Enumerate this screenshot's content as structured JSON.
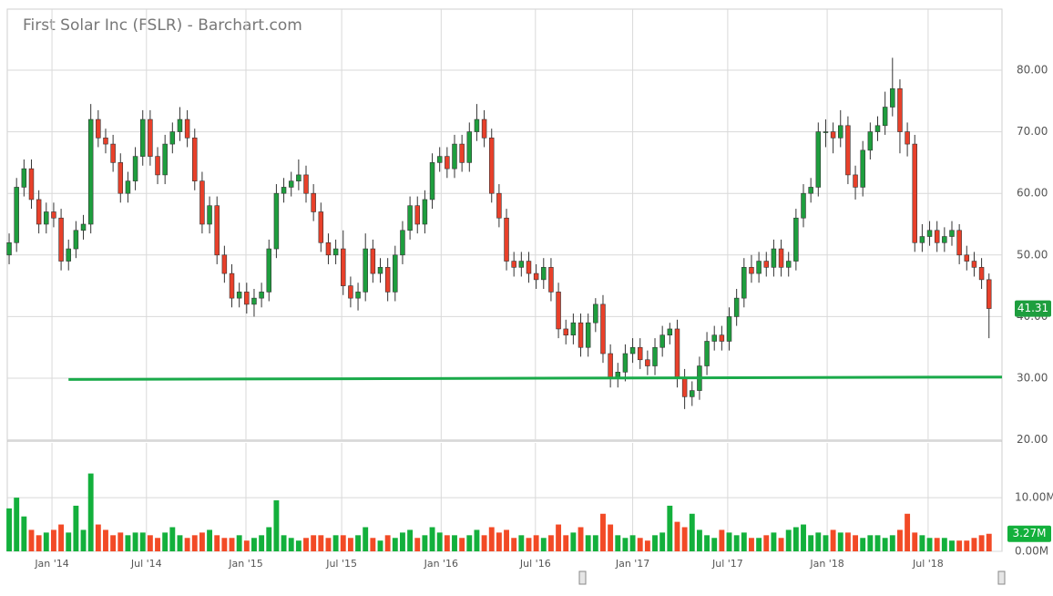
{
  "chart_data": {
    "type": "candlestick",
    "title": "First Solar Inc (FSLR) - Barchart.com",
    "open": [
      50,
      52,
      61,
      64,
      59,
      55,
      57,
      56,
      49,
      51,
      54,
      55,
      72,
      69,
      68,
      65,
      60,
      62,
      66,
      72,
      66,
      63,
      68,
      70,
      72,
      69,
      62,
      55,
      58,
      50,
      47,
      43,
      44,
      42,
      43,
      44,
      51,
      60,
      61,
      62,
      63,
      60,
      57,
      52,
      50,
      51,
      45,
      43,
      44,
      51,
      47,
      48,
      44,
      50,
      54,
      58,
      55,
      59,
      65,
      66,
      64,
      68,
      65,
      70,
      72,
      69,
      60,
      56,
      49,
      48,
      49,
      47,
      46,
      48,
      44,
      38,
      37,
      39,
      35,
      39,
      42,
      34,
      30,
      31,
      34,
      35,
      33,
      32,
      35,
      37,
      38,
      30,
      27,
      28,
      32,
      36,
      37,
      36,
      40,
      43,
      48,
      47,
      49,
      48,
      51,
      48,
      49,
      56,
      60,
      61,
      70,
      70,
      69,
      71,
      63,
      61,
      67,
      70,
      71,
      74,
      77,
      70,
      68,
      52,
      53,
      54,
      52,
      53,
      54,
      50,
      49,
      48,
      46
    ],
    "high": [
      53.5,
      62.5,
      65.5,
      65.5,
      60.5,
      58.5,
      58.5,
      57.5,
      52.5,
      55.5,
      56.5,
      74.5,
      73.5,
      70.5,
      69.5,
      66.5,
      63.5,
      67.5,
      73.5,
      73.5,
      67.5,
      69.5,
      71.5,
      74,
      73.5,
      70.5,
      63.5,
      59.5,
      59.5,
      51.5,
      48.5,
      45.5,
      45.5,
      44.5,
      45.5,
      52.5,
      61.5,
      62.5,
      63.5,
      65.5,
      64.5,
      61.5,
      58.5,
      53.5,
      52.5,
      54,
      46.5,
      45.5,
      53.5,
      52.5,
      49.5,
      49.5,
      51.5,
      55.5,
      59.5,
      59.5,
      60.5,
      66.5,
      67.5,
      67.5,
      69.5,
      69.5,
      71.5,
      74.5,
      73.5,
      70.5,
      61.5,
      57.5,
      50.5,
      50.5,
      50.5,
      48.5,
      49.5,
      49.5,
      45.5,
      39.5,
      40.5,
      40.5,
      40.5,
      43,
      43.5,
      35.5,
      32.5,
      35.5,
      36.5,
      36.5,
      34.5,
      36.5,
      38.5,
      39,
      39.5,
      31.5,
      29.5,
      33.5,
      37.5,
      38.5,
      38.5,
      41.5,
      44.5,
      49.5,
      50,
      50.5,
      50.5,
      52.5,
      52.5,
      50.5,
      57.5,
      61.5,
      62.5,
      71.5,
      72,
      71.5,
      73.5,
      72.5,
      64.5,
      68.5,
      71.5,
      72.5,
      76.5,
      82,
      78.5,
      71.5,
      69.5,
      55,
      55.5,
      55.5,
      54.5,
      55.5,
      55,
      51.5,
      50.5,
      49.5,
      47
    ],
    "low": [
      48.5,
      50.5,
      59.5,
      57.5,
      53.5,
      53.5,
      54.5,
      47.5,
      47.5,
      49.5,
      52.5,
      53.5,
      67.5,
      66.5,
      63.5,
      58.5,
      58.5,
      60.5,
      64.5,
      64.5,
      61.5,
      61.5,
      66.5,
      68.5,
      67.5,
      60.5,
      53.5,
      53.5,
      48.5,
      45.5,
      41.5,
      41.5,
      40.5,
      40,
      41.5,
      42.5,
      49.5,
      58.5,
      59.5,
      60.5,
      58.5,
      55.5,
      50.5,
      48.5,
      48.5,
      43.5,
      41.5,
      41,
      42.5,
      45.5,
      45.5,
      42.5,
      42.5,
      48.5,
      52.5,
      53.5,
      53.5,
      57.5,
      63.5,
      62.5,
      62.5,
      63.5,
      63.5,
      68.5,
      67.5,
      58.5,
      54.5,
      47.5,
      46.5,
      46.5,
      45.5,
      44.5,
      44.5,
      42.5,
      36.5,
      35.5,
      35.5,
      33.5,
      33.5,
      37.5,
      32.5,
      28.5,
      28.5,
      29.5,
      32.5,
      31.5,
      30.5,
      30.5,
      33.5,
      35.5,
      28.5,
      25,
      25.5,
      26.5,
      30.5,
      34.5,
      34.5,
      34.5,
      38.5,
      41.5,
      45.5,
      45.5,
      46.5,
      46.5,
      46.5,
      46.5,
      47.5,
      54.5,
      58.5,
      59.5,
      67.5,
      66.5,
      67.5,
      61.5,
      59,
      59.5,
      65.5,
      68.5,
      69.5,
      72.5,
      66.5,
      66,
      50.5,
      50.5,
      51.5,
      50.5,
      50.5,
      51.5,
      48.5,
      47.5,
      46.5,
      44.5,
      36.5
    ],
    "close": [
      52,
      61,
      64,
      59,
      55,
      57,
      56,
      49,
      51,
      54,
      55,
      72,
      69,
      68,
      65,
      60,
      62,
      66,
      72,
      66,
      63,
      68,
      70,
      72,
      69,
      62,
      55,
      58,
      50,
      47,
      43,
      44,
      42,
      43,
      44,
      51,
      60,
      61,
      62,
      63,
      60,
      57,
      52,
      50,
      51,
      45,
      43,
      44,
      51,
      47,
      48,
      44,
      50,
      54,
      58,
      55,
      59,
      65,
      66,
      64,
      68,
      65,
      70,
      72,
      69,
      60,
      56,
      49,
      48,
      49,
      47,
      46,
      48,
      44,
      38,
      37,
      39,
      35,
      39,
      42,
      34,
      30,
      31,
      34,
      35,
      33,
      32,
      35,
      37,
      38,
      30,
      27,
      28,
      32,
      36,
      37,
      36,
      40,
      43,
      48,
      47,
      49,
      48,
      51,
      48,
      49,
      56,
      60,
      61,
      70,
      70,
      69,
      71,
      63,
      61,
      67,
      70,
      71,
      74,
      77,
      70,
      68,
      52,
      53,
      54,
      52,
      53,
      54,
      50,
      49,
      48,
      46,
      41.31
    ],
    "volume": [
      8,
      10,
      6.5,
      4,
      3,
      3.5,
      4,
      5,
      3.5,
      8.5,
      4,
      14.5,
      5,
      4,
      3,
      3.5,
      3,
      3.5,
      3.5,
      3,
      2.5,
      3.5,
      4.5,
      3,
      2.5,
      3,
      3.5,
      4,
      3,
      2.5,
      2.5,
      3,
      2,
      2.5,
      3,
      4.5,
      9.5,
      3,
      2.5,
      2,
      2.5,
      3,
      3,
      2.5,
      3,
      3,
      2.5,
      3,
      4.5,
      2.5,
      2,
      3,
      2.5,
      3.5,
      4,
      2.5,
      3,
      4.5,
      3.5,
      3,
      3,
      2.5,
      3,
      4,
      3,
      4.5,
      3.5,
      4,
      2.5,
      3,
      2.5,
      3,
      2.5,
      3,
      5,
      3,
      3.5,
      4.5,
      3,
      3,
      7,
      5,
      3,
      2.5,
      3,
      2.5,
      2,
      3,
      3.5,
      8.5,
      5.5,
      4.5,
      7,
      4,
      3,
      2.5,
      4,
      3.5,
      3,
      3.5,
      2.5,
      2.5,
      3,
      3.5,
      2.5,
      4,
      4.5,
      5,
      3,
      3.5,
      3,
      4,
      3.5,
      3.5,
      3,
      2.5,
      3,
      3,
      2.5,
      3,
      4,
      7,
      3.5,
      3,
      2.5,
      2.5,
      2.5,
      2,
      2,
      2,
      2.5,
      3,
      3.27
    ],
    "volume_last_label": "3.27M",
    "up_color": "#1e9e3e",
    "down_color": "#e8402a",
    "volume_up_color": "#13b03c",
    "volume_down_color": "#f24a26",
    "trendline": {
      "x": [
        8,
        133.75
      ],
      "y": [
        29.8,
        30.2
      ],
      "color": "#1aaa4a"
    },
    "xlim": [
      -0.25,
      133.75
    ],
    "xticks": [
      {
        "value": 5.77,
        "label": "Jan '14"
      },
      {
        "value": 18.5,
        "label": "Jul '14"
      },
      {
        "value": 31.9,
        "label": "Jan '15"
      },
      {
        "value": 44.8,
        "label": "Jul '15"
      },
      {
        "value": 58.2,
        "label": "Jan '16"
      },
      {
        "value": 70.9,
        "label": "Jul '16"
      },
      {
        "value": 84.0,
        "label": "Jan '17"
      },
      {
        "value": 96.8,
        "label": "Jul '17"
      },
      {
        "value": 110.2,
        "label": "Jan '18"
      },
      {
        "value": 123.8,
        "label": "Jul '18"
      }
    ],
    "ylim": [
      20.1,
      89.9
    ],
    "yticks": [
      {
        "value": 20,
        "label": "20.00"
      },
      {
        "value": 30,
        "label": "30.00"
      },
      {
        "value": 40,
        "label": "40.00"
      },
      {
        "value": 50,
        "label": "50.00"
      },
      {
        "value": 60,
        "label": "60.00"
      },
      {
        "value": 70,
        "label": "70.00"
      },
      {
        "value": 80,
        "label": "80.00"
      }
    ],
    "volume_ylim": [
      0,
      20.2
    ],
    "volume_yticks": [
      {
        "value": 0,
        "label": "0.00M"
      },
      {
        "value": 10,
        "label": "10.00M"
      }
    ],
    "grid": true
  }
}
